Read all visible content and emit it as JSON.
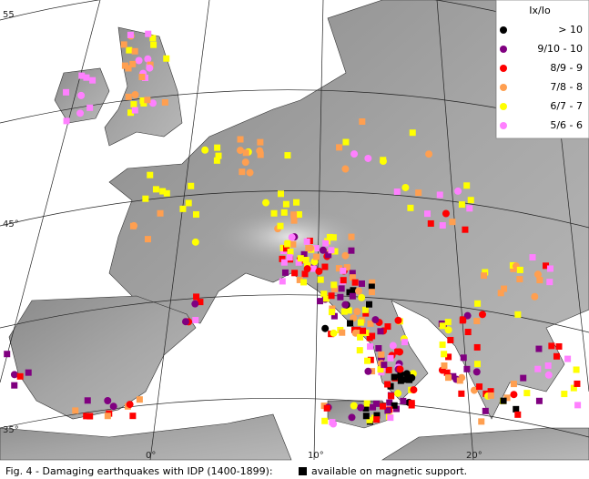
{
  "legend": {
    "title": "Ix/Io",
    "items": [
      {
        "label": "> 10",
        "color": "#000000"
      },
      {
        "label": "9/10 - 10",
        "color": "#800080"
      },
      {
        "label": "8/9 -  9",
        "color": "#ff0000"
      },
      {
        "label": "7/8 -  8",
        "color": "#ff9f50"
      },
      {
        "label": "6/7 -  7",
        "color": "#ffff00"
      },
      {
        "label": "5/6 -  6",
        "color": "#ff80ff"
      }
    ]
  },
  "graticule": {
    "latitudes": [
      "55",
      "45°",
      "35°"
    ],
    "longitudes": [
      "0°",
      "10°",
      "20°"
    ]
  },
  "caption": {
    "text": "Fig. 4 - Damaging earthquakes with IDP (1400-1899):",
    "note": "available on magnetic support."
  }
}
